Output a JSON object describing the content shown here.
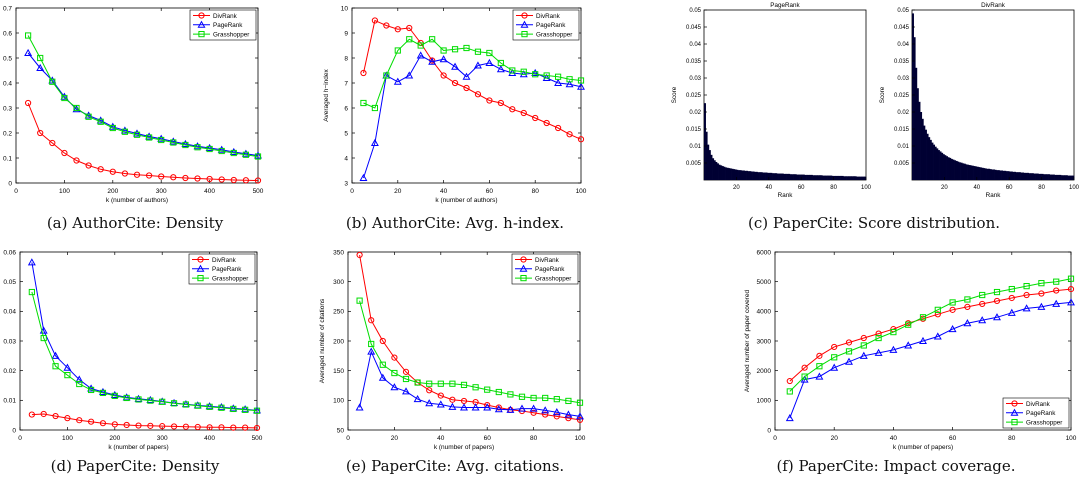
{
  "chart_data": [
    {
      "type": "line",
      "caption": "(a) AuthorCite: Density",
      "xlabel": "k (number of authors)",
      "ylabel": "Density",
      "title": "",
      "xlim": [
        0,
        500
      ],
      "ylim": [
        0,
        0.7
      ],
      "xticks": [
        0,
        100,
        200,
        300,
        400,
        500
      ],
      "yticks": [
        0,
        0.1,
        0.2,
        0.3,
        0.4,
        0.5,
        0.6,
        0.7
      ],
      "legend": {
        "placement": "top-right",
        "entries": [
          "DivRank",
          "PageRank",
          "Grasshopper"
        ]
      },
      "x": [
        25,
        50,
        75,
        100,
        125,
        150,
        175,
        200,
        225,
        250,
        275,
        300,
        325,
        350,
        375,
        400,
        425,
        450,
        475,
        500
      ],
      "series": [
        {
          "name": "DivRank",
          "color": "#ff0000",
          "marker": "circle",
          "values": [
            0.32,
            0.2,
            0.16,
            0.12,
            0.09,
            0.07,
            0.055,
            0.045,
            0.038,
            0.033,
            0.03,
            0.026,
            0.023,
            0.02,
            0.018,
            0.016,
            0.014,
            0.012,
            0.011,
            0.01
          ]
        },
        {
          "name": "PageRank",
          "color": "#0000ff",
          "marker": "triangle",
          "values": [
            0.52,
            0.46,
            0.41,
            0.345,
            0.295,
            0.27,
            0.25,
            0.225,
            0.21,
            0.198,
            0.186,
            0.177,
            0.166,
            0.156,
            0.147,
            0.14,
            0.133,
            0.124,
            0.117,
            0.11
          ]
        },
        {
          "name": "Grasshopper",
          "color": "#00dd00",
          "marker": "square",
          "values": [
            0.59,
            0.5,
            0.405,
            0.34,
            0.3,
            0.265,
            0.245,
            0.22,
            0.205,
            0.193,
            0.182,
            0.172,
            0.162,
            0.152,
            0.143,
            0.136,
            0.128,
            0.12,
            0.113,
            0.106
          ]
        }
      ]
    },
    {
      "type": "line",
      "caption": "(b) AuthorCite: Avg. h-index.",
      "xlabel": "k (number of authors)",
      "ylabel": "Averaged h−index",
      "title": "",
      "xlim": [
        0,
        100
      ],
      "ylim": [
        3,
        10
      ],
      "xticks": [
        0,
        20,
        40,
        60,
        80,
        100
      ],
      "yticks": [
        3,
        4,
        5,
        6,
        7,
        8,
        9,
        10
      ],
      "legend": {
        "placement": "top-right",
        "entries": [
          "DivRank",
          "PageRank",
          "Grasshopper"
        ]
      },
      "x": [
        5,
        10,
        15,
        20,
        25,
        30,
        35,
        40,
        45,
        50,
        55,
        60,
        65,
        70,
        75,
        80,
        85,
        90,
        95,
        100
      ],
      "series": [
        {
          "name": "DivRank",
          "color": "#ff0000",
          "marker": "circle",
          "values": [
            7.4,
            9.5,
            9.3,
            9.15,
            9.2,
            8.6,
            7.9,
            7.3,
            7.0,
            6.8,
            6.55,
            6.3,
            6.2,
            5.95,
            5.8,
            5.6,
            5.4,
            5.2,
            4.95,
            4.75
          ]
        },
        {
          "name": "PageRank",
          "color": "#0000ff",
          "marker": "triangle",
          "values": [
            3.2,
            4.6,
            7.3,
            7.05,
            7.3,
            8.1,
            7.85,
            7.95,
            7.65,
            7.25,
            7.7,
            7.8,
            7.55,
            7.4,
            7.35,
            7.4,
            7.2,
            7.0,
            6.95,
            6.85
          ]
        },
        {
          "name": "Grasshopper",
          "color": "#00dd00",
          "marker": "square",
          "values": [
            6.2,
            6.0,
            7.3,
            8.3,
            8.75,
            8.5,
            8.75,
            8.3,
            8.35,
            8.4,
            8.25,
            8.2,
            7.8,
            7.5,
            7.45,
            7.35,
            7.3,
            7.25,
            7.15,
            7.1
          ]
        }
      ]
    },
    {
      "type": "bar",
      "caption": "(c) PaperCite: Score distribution.",
      "subplots": [
        {
          "title": "PageRank",
          "xlabel": "Rank",
          "ylabel": "Score",
          "xlim": [
            0,
            100
          ],
          "ylim": [
            0,
            0.05
          ],
          "xticks": [
            20,
            40,
            60,
            80,
            100
          ],
          "yticks": [
            0.005,
            0.01,
            0.015,
            0.02,
            0.025,
            0.03,
            0.035,
            0.04,
            0.045,
            0.05
          ],
          "bar_color": "#000033",
          "values": [
            0.0226,
            0.0142,
            0.0104,
            0.0088,
            0.0074,
            0.0064,
            0.0058,
            0.0053,
            0.0049,
            0.0045,
            0.0043,
            0.0041,
            0.0039,
            0.0037,
            0.0036,
            0.0035,
            0.0034,
            0.0033,
            0.0032,
            0.0031,
            0.003,
            0.0029,
            0.0029,
            0.0028,
            0.0028,
            0.0027,
            0.0027,
            0.0026,
            0.0026,
            0.0025,
            0.0025,
            0.0024,
            0.0024,
            0.0023,
            0.0023,
            0.0023,
            0.0022,
            0.0022,
            0.0022,
            0.0021,
            0.0021,
            0.0021,
            0.002,
            0.002,
            0.002,
            0.0019,
            0.0019,
            0.0019,
            0.0019,
            0.0018,
            0.0018,
            0.0018,
            0.0018,
            0.0017,
            0.0017,
            0.0017,
            0.0017,
            0.0016,
            0.0016,
            0.0016,
            0.0016,
            0.0016,
            0.0015,
            0.0015,
            0.0015,
            0.0015,
            0.0015,
            0.0014,
            0.0014,
            0.0014,
            0.0014,
            0.0014,
            0.0014,
            0.0013,
            0.0013,
            0.0013,
            0.0013,
            0.0013,
            0.0013,
            0.0012,
            0.0012,
            0.0012,
            0.0012,
            0.0012,
            0.0012,
            0.0012,
            0.0011,
            0.0011,
            0.0011,
            0.0011,
            0.0011,
            0.0011,
            0.0011,
            0.0011,
            0.001,
            0.001,
            0.001,
            0.001,
            0.001,
            0.001
          ]
        },
        {
          "title": "DivRank",
          "xlabel": "Rank",
          "ylabel": "Score",
          "xlim": [
            0,
            100
          ],
          "ylim": [
            0,
            0.05
          ],
          "xticks": [
            20,
            40,
            60,
            80,
            100
          ],
          "yticks": [
            0.005,
            0.01,
            0.015,
            0.02,
            0.025,
            0.03,
            0.035,
            0.04,
            0.045,
            0.05
          ],
          "bar_color": "#000033",
          "values": [
            0.049,
            0.042,
            0.033,
            0.027,
            0.023,
            0.02,
            0.018,
            0.016,
            0.0148,
            0.0136,
            0.0126,
            0.0118,
            0.011,
            0.0104,
            0.0098,
            0.0093,
            0.0088,
            0.0084,
            0.008,
            0.0076,
            0.0073,
            0.007,
            0.0067,
            0.0065,
            0.0062,
            0.006,
            0.0058,
            0.0056,
            0.0054,
            0.0052,
            0.0051,
            0.0049,
            0.0048,
            0.0046,
            0.0045,
            0.0044,
            0.0043,
            0.0042,
            0.0041,
            0.004,
            0.0039,
            0.0038,
            0.0037,
            0.0036,
            0.0035,
            0.0034,
            0.0033,
            0.0033,
            0.0032,
            0.0031,
            0.0031,
            0.003,
            0.0029,
            0.0029,
            0.0028,
            0.0028,
            0.0027,
            0.0027,
            0.0026,
            0.0026,
            0.0025,
            0.0025,
            0.0024,
            0.0024,
            0.0023,
            0.0023,
            0.0023,
            0.0022,
            0.0022,
            0.0021,
            0.0021,
            0.0021,
            0.002,
            0.002,
            0.002,
            0.0019,
            0.0019,
            0.0019,
            0.0018,
            0.0018,
            0.0018,
            0.0017,
            0.0017,
            0.0017,
            0.0017,
            0.0016,
            0.0016,
            0.0016,
            0.0015,
            0.0015,
            0.0015,
            0.0015,
            0.0014,
            0.0014,
            0.0014,
            0.0014,
            0.0013,
            0.0013,
            0.0013,
            0.0013
          ]
        }
      ]
    },
    {
      "type": "line",
      "caption": "(d) PaperCite: Density",
      "xlabel": "k (number of papers)",
      "ylabel": "Density",
      "title": "",
      "xlim": [
        0,
        500
      ],
      "ylim": [
        0,
        0.06
      ],
      "xticks": [
        0,
        100,
        200,
        300,
        400,
        500
      ],
      "yticks": [
        0,
        0.01,
        0.02,
        0.03,
        0.04,
        0.05,
        0.06
      ],
      "legend": {
        "placement": "top-right",
        "entries": [
          "DivRank",
          "PageRank",
          "Grasshopper"
        ]
      },
      "x": [
        25,
        50,
        75,
        100,
        125,
        150,
        175,
        200,
        225,
        250,
        275,
        300,
        325,
        350,
        375,
        400,
        425,
        450,
        475,
        500
      ],
      "series": [
        {
          "name": "DivRank",
          "color": "#ff0000",
          "marker": "circle",
          "values": [
            0.0052,
            0.0054,
            0.0047,
            0.004,
            0.0033,
            0.0028,
            0.0023,
            0.0019,
            0.0017,
            0.0015,
            0.0014,
            0.0013,
            0.0012,
            0.0011,
            0.001,
            0.0009,
            0.0009,
            0.0008,
            0.0008,
            0.0007
          ]
        },
        {
          "name": "PageRank",
          "color": "#0000ff",
          "marker": "triangle",
          "values": [
            0.0565,
            0.0335,
            0.025,
            0.021,
            0.017,
            0.014,
            0.0128,
            0.0118,
            0.011,
            0.0105,
            0.0101,
            0.0096,
            0.0091,
            0.0087,
            0.0083,
            0.008,
            0.0077,
            0.0073,
            0.007,
            0.0066
          ]
        },
        {
          "name": "Grasshopper",
          "color": "#00dd00",
          "marker": "square",
          "values": [
            0.0465,
            0.031,
            0.0215,
            0.0185,
            0.0155,
            0.0135,
            0.0125,
            0.0115,
            0.0108,
            0.0103,
            0.0099,
            0.0095,
            0.009,
            0.0086,
            0.0082,
            0.0078,
            0.0075,
            0.0071,
            0.0068,
            0.0065
          ]
        }
      ]
    },
    {
      "type": "line",
      "caption": "(e) PaperCite: Avg. citations.",
      "xlabel": "k (number of papers)",
      "ylabel": "Averaged number of citations",
      "title": "",
      "xlim": [
        0,
        100
      ],
      "ylim": [
        50,
        350
      ],
      "xticks": [
        0,
        20,
        40,
        60,
        80,
        100
      ],
      "yticks": [
        50,
        100,
        150,
        200,
        250,
        300,
        350
      ],
      "legend": {
        "placement": "top-right",
        "entries": [
          "DivRank",
          "PageRank",
          "Grasshopper"
        ]
      },
      "x": [
        5,
        10,
        15,
        20,
        25,
        30,
        35,
        40,
        45,
        50,
        55,
        60,
        65,
        70,
        75,
        80,
        85,
        90,
        95,
        100
      ],
      "series": [
        {
          "name": "DivRank",
          "color": "#ff0000",
          "marker": "circle",
          "values": [
            345,
            235,
            200,
            172,
            148,
            130,
            117,
            108,
            101,
            99,
            97,
            92,
            88,
            84,
            82,
            79,
            76,
            73,
            70,
            67
          ]
        },
        {
          "name": "PageRank",
          "color": "#0000ff",
          "marker": "triangle",
          "values": [
            88,
            182,
            138,
            122,
            115,
            102,
            95,
            93,
            89,
            88,
            88,
            88,
            85,
            84,
            86,
            86,
            83,
            80,
            76,
            73
          ]
        },
        {
          "name": "Grasshopper",
          "color": "#00dd00",
          "marker": "square",
          "values": [
            268,
            195,
            160,
            146,
            136,
            130,
            128,
            128,
            128,
            126,
            122,
            118,
            114,
            110,
            106,
            104,
            104,
            102,
            99,
            96
          ]
        }
      ]
    },
    {
      "type": "line",
      "caption": "(f) PaperCite: Impact coverage.",
      "xlabel": "k (number of papers)",
      "ylabel": "Averaged number of paper covered",
      "title": "",
      "xlim": [
        0,
        100
      ],
      "ylim": [
        0,
        6000
      ],
      "xticks": [
        0,
        20,
        40,
        60,
        80,
        100
      ],
      "yticks": [
        0,
        1000,
        2000,
        3000,
        4000,
        5000,
        6000
      ],
      "legend": {
        "placement": "bottom-right",
        "entries": [
          "DivRank",
          "PageRank",
          "Grasshopper"
        ]
      },
      "x": [
        5,
        10,
        15,
        20,
        25,
        30,
        35,
        40,
        45,
        50,
        55,
        60,
        65,
        70,
        75,
        80,
        85,
        90,
        95,
        100
      ],
      "series": [
        {
          "name": "DivRank",
          "color": "#ff0000",
          "marker": "circle",
          "values": [
            1650,
            2100,
            2500,
            2800,
            2950,
            3100,
            3250,
            3400,
            3600,
            3750,
            3900,
            4050,
            4150,
            4250,
            4350,
            4450,
            4550,
            4600,
            4700,
            4750
          ]
        },
        {
          "name": "PageRank",
          "color": "#0000ff",
          "marker": "triangle",
          "values": [
            400,
            1700,
            1800,
            2100,
            2300,
            2500,
            2600,
            2700,
            2850,
            3000,
            3150,
            3400,
            3600,
            3700,
            3800,
            3950,
            4100,
            4150,
            4250,
            4300
          ]
        },
        {
          "name": "Grasshopper",
          "color": "#00dd00",
          "marker": "square",
          "values": [
            1300,
            1800,
            2150,
            2450,
            2650,
            2850,
            3100,
            3300,
            3550,
            3800,
            4050,
            4300,
            4400,
            4550,
            4650,
            4750,
            4850,
            4950,
            5000,
            5100
          ]
        }
      ]
    }
  ]
}
